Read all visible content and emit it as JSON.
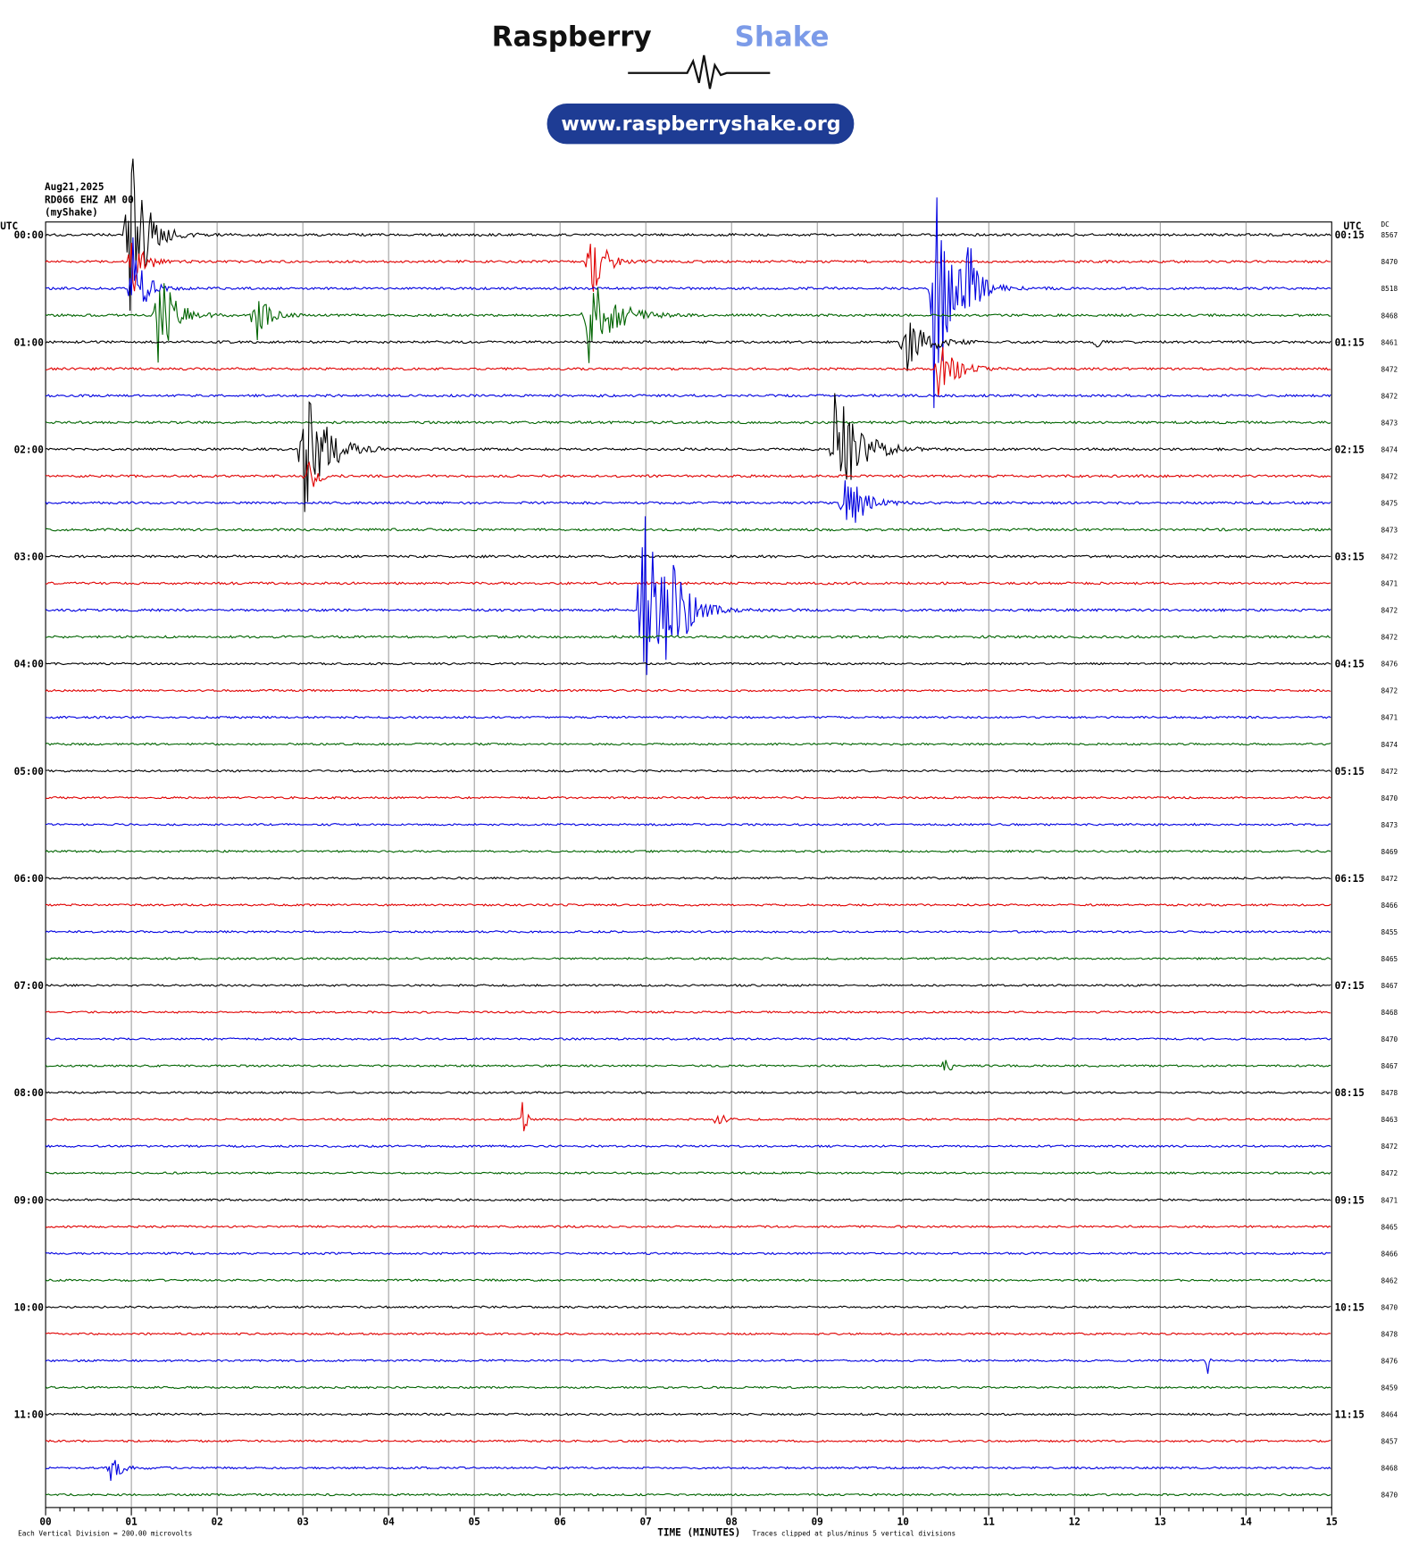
{
  "header": {
    "brand": "Raspberry",
    "brand_accent": "Shake",
    "url": "www.raspberryshake.org"
  },
  "station": {
    "date": "Aug21,2025",
    "channel": "RD066 EHZ AM 00",
    "network": "(myShake)"
  },
  "left_axis": {
    "title": "UTC",
    "labels": [
      "00:00",
      "01:00",
      "02:00",
      "03:00",
      "04:00",
      "05:00",
      "06:00",
      "07:00",
      "08:00",
      "09:00",
      "10:00",
      "11:00"
    ]
  },
  "right_axis": {
    "title": "UTC",
    "labels": [
      "00:15",
      "01:15",
      "02:15",
      "03:15",
      "04:15",
      "05:15",
      "06:15",
      "07:15",
      "08:15",
      "09:15",
      "10:15",
      "11:15"
    ]
  },
  "dc": {
    "title": "DC",
    "values": [
      8567,
      8470,
      8518,
      8468,
      8461,
      8472,
      8472,
      8473,
      8474,
      8472,
      8475,
      8473,
      8472,
      8471,
      8472,
      8472,
      8476,
      8472,
      8471,
      8474,
      8472,
      8470,
      8473,
      8469,
      8472,
      8466,
      8455,
      8465,
      8467,
      8468,
      8470,
      8467,
      8478,
      8463,
      8472,
      8472,
      8471,
      8465,
      8466,
      8462,
      8470,
      8478,
      8476,
      8459,
      8464,
      8457,
      8468,
      8470
    ]
  },
  "x_axis": {
    "title": "TIME (MINUTES)",
    "labels": [
      "00",
      "01",
      "02",
      "03",
      "04",
      "05",
      "06",
      "07",
      "08",
      "09",
      "10",
      "11",
      "12",
      "13",
      "14",
      "15"
    ]
  },
  "footer": {
    "scale": "Each Vertical Division =  200.00 microvolts",
    "clip": "Traces clipped at plus/minus 5 vertical divisions"
  },
  "trace_colors": [
    "#000000",
    "#e00000",
    "#0000e0",
    "#006400"
  ]
}
